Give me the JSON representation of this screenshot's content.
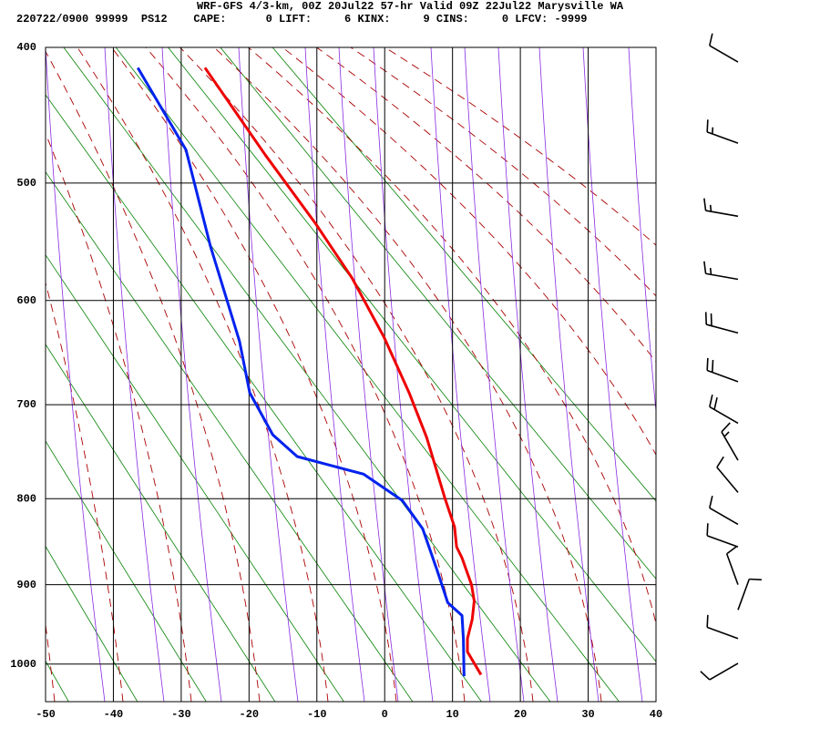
{
  "chart_data": {
    "type": "sounding",
    "title": "WRF-GFS 4/3-km, 00Z 20Jul22 57-hr Valid 09Z 22Jul22 Marysville WA",
    "subtitle": "220722/0900 99999  PS12    CAPE:      0 LIFT:     6 KINX:     9 CINS:     0 LFCV: -9999",
    "xlim": [
      -50,
      40
    ],
    "xticks": [
      -50,
      -40,
      -30,
      -20,
      -10,
      0,
      10,
      20,
      30,
      40
    ],
    "ylim": [
      1050,
      400
    ],
    "yticks": [
      400,
      500,
      600,
      700,
      800,
      900,
      1000
    ],
    "yscale": "power",
    "yexponent": 0.286,
    "grid": true,
    "series": [
      {
        "color": "#ee0000",
        "x": [
          -26.5,
          -17.6,
          -10.2,
          -4.8,
          -0.1,
          3.6,
          6.2,
          8.9,
          10.3,
          10.6,
          11.4,
          12.8,
          13.2,
          12.9,
          12.2,
          12.2,
          14.2
        ],
        "y": [
          414,
          478,
          533,
          580,
          634,
          688,
          734,
          800,
          832,
          855,
          868,
          900,
          920,
          943,
          967,
          984,
          1014
        ]
      },
      {
        "color": "#0022ee",
        "x": [
          -36.4,
          -29.3,
          -25.7,
          -21.4,
          -19.9,
          -16.5,
          -12.9,
          -3.1,
          2.6,
          5.6,
          7.7,
          9.3,
          11.4,
          11.6,
          11.7
        ],
        "y": [
          414,
          474,
          552,
          638,
          688,
          731,
          754,
          773,
          802,
          834,
          882,
          922,
          938,
          967,
          1016
        ]
      }
    ],
    "wind": {
      "pressure": [
        410,
        469,
        527,
        581,
        630,
        677,
        719,
        758,
        793,
        829,
        855,
        900,
        931,
        967,
        999
      ],
      "direction": [
        300,
        290,
        280,
        280,
        285,
        290,
        300,
        330,
        320,
        300,
        290,
        340,
        20,
        290,
        240
      ],
      "speed": [
        10,
        15,
        15,
        15,
        20,
        20,
        20,
        15,
        10,
        10,
        10,
        10,
        10,
        10,
        10
      ]
    }
  }
}
